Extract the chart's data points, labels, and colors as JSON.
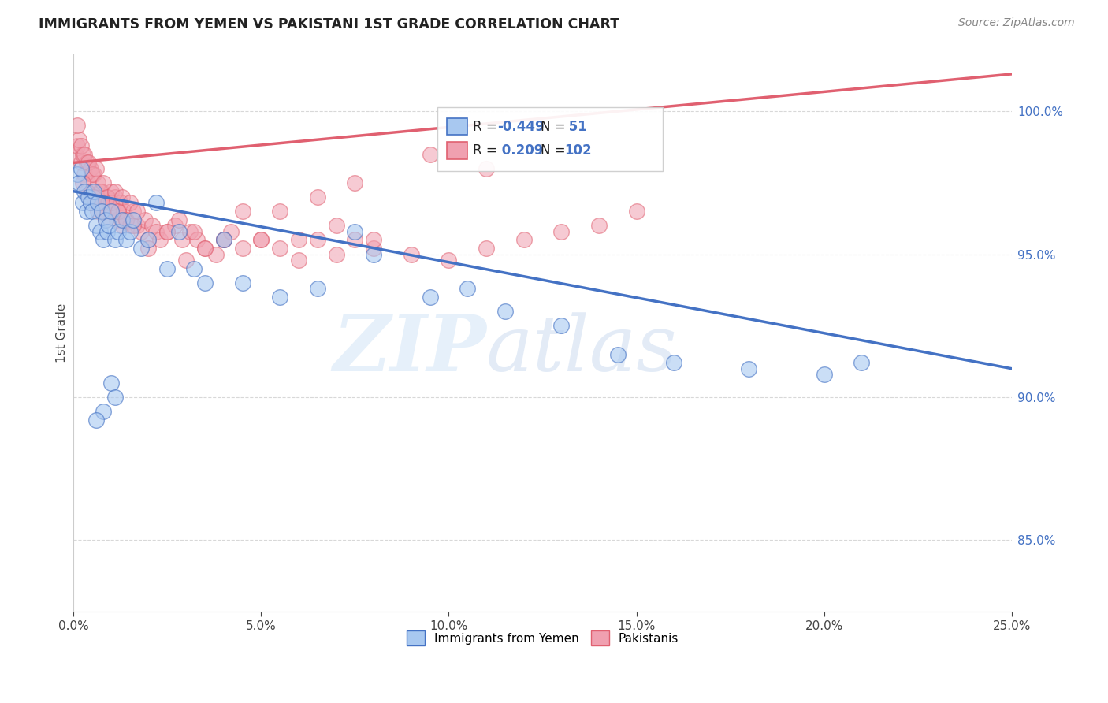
{
  "title": "IMMIGRANTS FROM YEMEN VS PAKISTANI 1ST GRADE CORRELATION CHART",
  "source": "Source: ZipAtlas.com",
  "ylabel": "1st Grade",
  "xlabel_ticks": [
    "0.0%",
    "5.0%",
    "10.0%",
    "15.0%",
    "20.0%",
    "25.0%"
  ],
  "xlabel_vals": [
    0.0,
    5.0,
    10.0,
    15.0,
    20.0,
    25.0
  ],
  "ylabel_ticks": [
    "85.0%",
    "90.0%",
    "95.0%",
    "100.0%"
  ],
  "ylabel_vals": [
    85.0,
    90.0,
    95.0,
    100.0
  ],
  "xlim": [
    0.0,
    25.0
  ],
  "ylim": [
    82.5,
    102.0
  ],
  "blue_R": -0.449,
  "blue_N": 51,
  "pink_R": 0.209,
  "pink_N": 102,
  "blue_color": "#a8c8f0",
  "pink_color": "#f0a0b0",
  "blue_line_color": "#4472c4",
  "pink_line_color": "#e06070",
  "blue_trend_x0": 0.0,
  "blue_trend_y0": 97.2,
  "blue_trend_x1": 25.0,
  "blue_trend_y1": 91.0,
  "pink_trend_x0": 0.0,
  "pink_trend_y0": 98.2,
  "pink_trend_x1": 25.0,
  "pink_trend_y1": 101.3,
  "blue_scatter_x": [
    0.1,
    0.15,
    0.2,
    0.25,
    0.3,
    0.35,
    0.4,
    0.45,
    0.5,
    0.55,
    0.6,
    0.65,
    0.7,
    0.75,
    0.8,
    0.85,
    0.9,
    0.95,
    1.0,
    1.1,
    1.2,
    1.3,
    1.4,
    1.5,
    1.6,
    1.8,
    2.0,
    2.2,
    2.5,
    2.8,
    3.2,
    3.5,
    4.0,
    4.5,
    5.5,
    6.5,
    7.5,
    8.0,
    9.5,
    10.5,
    11.5,
    13.0,
    14.5,
    16.0,
    18.0,
    20.0,
    21.0,
    1.0,
    1.1,
    0.8,
    0.6
  ],
  "blue_scatter_y": [
    97.8,
    97.5,
    98.0,
    96.8,
    97.2,
    96.5,
    97.0,
    96.8,
    96.5,
    97.2,
    96.0,
    96.8,
    95.8,
    96.5,
    95.5,
    96.2,
    95.8,
    96.0,
    96.5,
    95.5,
    95.8,
    96.2,
    95.5,
    95.8,
    96.2,
    95.2,
    95.5,
    96.8,
    94.5,
    95.8,
    94.5,
    94.0,
    95.5,
    94.0,
    93.5,
    93.8,
    95.8,
    95.0,
    93.5,
    93.8,
    93.0,
    92.5,
    91.5,
    91.2,
    91.0,
    90.8,
    91.2,
    90.5,
    90.0,
    89.5,
    89.2
  ],
  "pink_scatter_x": [
    0.05,
    0.1,
    0.15,
    0.2,
    0.25,
    0.3,
    0.35,
    0.4,
    0.45,
    0.5,
    0.55,
    0.6,
    0.65,
    0.7,
    0.75,
    0.8,
    0.85,
    0.9,
    0.95,
    1.0,
    1.05,
    1.1,
    1.15,
    1.2,
    1.25,
    1.3,
    1.35,
    1.4,
    1.5,
    1.6,
    1.7,
    1.8,
    1.9,
    2.0,
    2.1,
    2.2,
    2.3,
    2.5,
    2.7,
    2.9,
    3.1,
    3.3,
    3.5,
    3.8,
    4.0,
    4.2,
    4.5,
    5.0,
    5.5,
    6.0,
    6.5,
    7.0,
    7.5,
    8.0,
    9.0,
    10.0,
    11.0,
    12.0,
    13.0,
    14.0,
    15.0,
    0.1,
    0.2,
    0.3,
    0.4,
    0.5,
    0.6,
    0.7,
    0.8,
    0.9,
    1.0,
    1.1,
    1.2,
    1.3,
    1.4,
    1.5,
    1.6,
    1.7,
    0.25,
    0.35,
    0.45,
    0.55,
    0.65,
    0.75,
    0.85,
    2.0,
    2.5,
    3.0,
    3.5,
    4.0,
    5.0,
    6.0,
    7.0,
    8.0,
    2.8,
    3.2,
    4.5,
    5.5,
    6.5,
    7.5,
    9.5,
    11.0
  ],
  "pink_scatter_y": [
    98.5,
    98.8,
    99.0,
    98.2,
    98.5,
    97.8,
    98.2,
    97.5,
    98.0,
    97.2,
    97.8,
    97.0,
    97.5,
    96.8,
    97.2,
    96.5,
    97.0,
    96.5,
    96.8,
    97.2,
    96.5,
    97.0,
    96.2,
    96.5,
    96.8,
    96.0,
    96.5,
    96.2,
    96.0,
    96.5,
    96.0,
    95.8,
    96.2,
    95.5,
    96.0,
    95.8,
    95.5,
    95.8,
    96.0,
    95.5,
    95.8,
    95.5,
    95.2,
    95.0,
    95.5,
    95.8,
    95.2,
    95.5,
    95.2,
    94.8,
    95.5,
    95.0,
    95.5,
    95.2,
    95.0,
    94.8,
    95.2,
    95.5,
    95.8,
    96.0,
    96.5,
    99.5,
    98.8,
    98.5,
    98.2,
    97.8,
    98.0,
    97.2,
    97.5,
    97.0,
    96.8,
    97.2,
    96.5,
    97.0,
    96.2,
    96.8,
    96.0,
    96.5,
    97.5,
    97.2,
    96.8,
    97.0,
    96.5,
    96.8,
    96.2,
    95.2,
    95.8,
    94.8,
    95.2,
    95.5,
    95.5,
    95.5,
    96.0,
    95.5,
    96.2,
    95.8,
    96.5,
    96.5,
    97.0,
    97.5,
    98.5,
    98.0
  ],
  "legend_label_blue": "Immigrants from Yemen",
  "legend_label_pink": "Pakistanis",
  "watermark_zip": "ZIP",
  "watermark_atlas": "atlas",
  "background_color": "#ffffff",
  "grid_color": "#d8d8d8"
}
